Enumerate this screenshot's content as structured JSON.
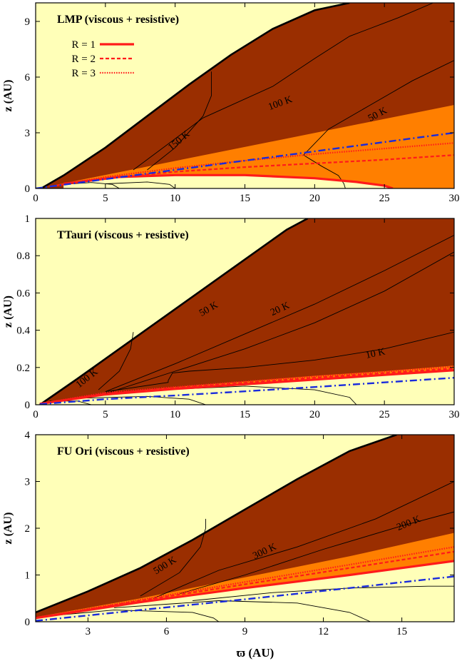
{
  "colors": {
    "dark_zone": "#9a2e00",
    "active_zone": "#ff7f00",
    "dead_zone": "#ffffb8",
    "curve_red": "#ff1a1a",
    "curve_blue": "#1a2bdc",
    "contour": "#000000"
  },
  "figure": {
    "shared_xlabel": "ϖ (AU)"
  },
  "chart_data": [
    {
      "type": "area",
      "id": "p1",
      "title": "LMP (viscous + resistive)",
      "xlabel": "",
      "ylabel": "z (AU)",
      "xlim": [
        0,
        30
      ],
      "ylim": [
        0,
        10
      ],
      "xticks": [
        0,
        5,
        10,
        15,
        20,
        25,
        30
      ],
      "yticks": [
        0,
        3,
        6,
        9
      ],
      "legend": {
        "placement": "top-left",
        "entries": [
          {
            "label": "R = 1",
            "style": "solid"
          },
          {
            "label": "R = 2",
            "style": "dashed"
          },
          {
            "label": "R = 3",
            "style": "dotted"
          }
        ]
      },
      "surface": {
        "x": [
          0.5,
          2,
          5,
          8,
          11,
          14,
          17,
          20,
          22.5
        ],
        "y": [
          0.05,
          0.7,
          2.2,
          3.9,
          5.6,
          7.2,
          8.6,
          9.6,
          10.0
        ]
      },
      "orange_top": {
        "x": [
          0.5,
          30
        ],
        "y": [
          0.05,
          4.5
        ]
      },
      "r1": {
        "x": [
          2,
          6,
          10,
          15,
          20,
          23,
          25,
          25.6
        ],
        "y": [
          0.25,
          0.62,
          0.72,
          0.72,
          0.55,
          0.35,
          0.15,
          0
        ]
      },
      "r2": {
        "x": [
          1,
          5,
          10,
          15,
          20,
          25,
          30
        ],
        "y": [
          0.1,
          0.55,
          0.9,
          1.15,
          1.35,
          1.55,
          1.8
        ]
      },
      "r3": {
        "x": [
          1,
          5,
          10,
          15,
          20,
          25,
          30
        ],
        "y": [
          0.1,
          0.62,
          1.1,
          1.5,
          1.85,
          2.15,
          2.45
        ]
      },
      "blue": {
        "x": [
          0,
          30
        ],
        "y": [
          0,
          3.0
        ]
      },
      "contours": [
        {
          "label": "150 K",
          "x": [
            8,
            10,
            12,
            12.6,
            12.6
          ],
          "y": [
            1.0,
            2.2,
            3.9,
            5.0,
            6.3
          ]
        },
        {
          "label": "100 K",
          "x": [
            7,
            12,
            17,
            20,
            22.5,
            26,
            28.5
          ],
          "y": [
            1.0,
            3.8,
            5.5,
            7.0,
            8.2,
            9.2,
            10.0
          ]
        },
        {
          "label": "50 K",
          "x": [
            19.2,
            21,
            24,
            27,
            30
          ],
          "y": [
            1.8,
            3.2,
            4.5,
            5.8,
            6.9
          ]
        },
        {
          "label": "",
          "x": [
            19.2,
            20.5,
            21.7,
            22.1,
            22.2
          ],
          "y": [
            1.8,
            1.2,
            0.7,
            0.25,
            0
          ]
        },
        {
          "label": "",
          "x": [
            2,
            4,
            5.5,
            6.0
          ],
          "y": [
            0.22,
            0.32,
            0.22,
            0
          ]
        },
        {
          "label": "",
          "x": [
            5,
            8,
            9.6,
            10.0
          ],
          "y": [
            0.25,
            0.35,
            0.22,
            0
          ]
        }
      ],
      "contour_labels": [
        {
          "text": "150 K",
          "x": 10.4,
          "y": 2.45,
          "angle": -40
        },
        {
          "text": "100 K",
          "x": 17.6,
          "y": 4.45,
          "angle": -20
        },
        {
          "text": "50 K",
          "x": 24.6,
          "y": 3.85,
          "angle": -28
        }
      ]
    },
    {
      "type": "area",
      "id": "p2",
      "title": "TTauri (viscous + resistive)",
      "xlabel": "",
      "ylabel": "z (AU)",
      "xlim": [
        0,
        30
      ],
      "ylim": [
        0,
        1
      ],
      "xticks": [
        0,
        5,
        10,
        15,
        20,
        25,
        30
      ],
      "yticks": [
        0,
        0.2,
        0.4,
        0.6,
        0.8,
        1
      ],
      "surface": {
        "x": [
          0.3,
          3,
          6,
          9,
          12,
          15,
          18,
          19.5
        ],
        "y": [
          0,
          0.14,
          0.3,
          0.46,
          0.62,
          0.78,
          0.94,
          1.0
        ]
      },
      "orange_top": {
        "x": [
          0.3,
          5,
          10,
          15,
          20,
          25,
          30
        ],
        "y": [
          0.01,
          0.06,
          0.095,
          0.125,
          0.155,
          0.18,
          0.21
        ]
      },
      "r1": {
        "x": [
          0.3,
          5,
          10,
          15,
          20,
          25,
          30
        ],
        "y": [
          0.005,
          0.055,
          0.085,
          0.11,
          0.135,
          0.16,
          0.185
        ]
      },
      "r2": {
        "x": [
          0.3,
          5,
          10,
          15,
          20,
          25,
          30
        ],
        "y": [
          0.005,
          0.06,
          0.09,
          0.118,
          0.145,
          0.17,
          0.195
        ]
      },
      "r3": {
        "x": [
          0.3,
          5,
          10,
          15,
          20,
          25,
          30
        ],
        "y": [
          0.005,
          0.065,
          0.095,
          0.125,
          0.152,
          0.178,
          0.205
        ]
      },
      "blue": {
        "x": [
          0.3,
          5,
          10,
          15,
          20,
          25,
          30
        ],
        "y": [
          0.003,
          0.03,
          0.05,
          0.072,
          0.095,
          0.12,
          0.145
        ]
      },
      "contours": [
        {
          "label": "100 K",
          "x": [
            4.5,
            6.0,
            6.8,
            7.0
          ],
          "y": [
            0.08,
            0.18,
            0.3,
            0.39
          ]
        },
        {
          "label": "50 K",
          "x": [
            5,
            10,
            15,
            20,
            25,
            30
          ],
          "y": [
            0.07,
            0.22,
            0.38,
            0.54,
            0.72,
            0.91
          ]
        },
        {
          "label": "20 K",
          "x": [
            5,
            10,
            15,
            20,
            25,
            30
          ],
          "y": [
            0.06,
            0.18,
            0.3,
            0.44,
            0.61,
            0.82
          ]
        },
        {
          "label": "10 K",
          "x": [
            9.5,
            9.8,
            11,
            15,
            20,
            25,
            30
          ],
          "y": [
            0.13,
            0.17,
            0.18,
            0.2,
            0.24,
            0.3,
            0.39
          ]
        },
        {
          "label": "",
          "x": [
            5,
            9.5,
            9.5
          ],
          "y": [
            0.07,
            0.12,
            0.13
          ]
        },
        {
          "label": "",
          "x": [
            1,
            3,
            4.0
          ],
          "y": [
            0.02,
            0.02,
            0
          ]
        },
        {
          "label": "",
          "x": [
            3,
            8,
            11,
            12.2
          ],
          "y": [
            0.035,
            0.045,
            0.03,
            0
          ]
        },
        {
          "label": "",
          "x": [
            9,
            15,
            20,
            22.5,
            23.0
          ],
          "y": [
            0.08,
            0.1,
            0.08,
            0.04,
            0
          ]
        }
      ],
      "contour_labels": [
        {
          "text": "100 K",
          "x": 3.8,
          "y": 0.13,
          "angle": -38
        },
        {
          "text": "50 K",
          "x": 12.5,
          "y": 0.5,
          "angle": -30
        },
        {
          "text": "20 K",
          "x": 17.6,
          "y": 0.5,
          "angle": -25
        },
        {
          "text": "10 K",
          "x": 24.4,
          "y": 0.26,
          "angle": -12
        }
      ]
    },
    {
      "type": "area",
      "id": "p3",
      "title": "FU Ori (viscous + resistive)",
      "xlabel": "ϖ (AU)",
      "ylabel": "z (AU)",
      "xlim": [
        1,
        17
      ],
      "ylim": [
        0,
        4
      ],
      "xticks": [
        3,
        6,
        9,
        12,
        15
      ],
      "yticks": [
        0,
        1,
        2,
        3,
        4
      ],
      "surface": {
        "x": [
          1,
          3,
          5,
          7,
          9,
          11,
          13,
          14.8
        ],
        "y": [
          0.2,
          0.65,
          1.15,
          1.75,
          2.4,
          3.05,
          3.65,
          4.0
        ]
      },
      "orange_top": {
        "x": [
          1,
          5,
          9,
          13,
          17
        ],
        "y": [
          0.1,
          0.5,
          0.95,
          1.4,
          1.9
        ]
      },
      "r1": {
        "x": [
          1,
          5,
          9,
          13,
          17
        ],
        "y": [
          0.08,
          0.42,
          0.72,
          1.0,
          1.3
        ]
      },
      "r2": {
        "x": [
          1,
          5,
          9,
          13,
          17
        ],
        "y": [
          0.08,
          0.45,
          0.8,
          1.15,
          1.5
        ]
      },
      "r3": {
        "x": [
          1,
          5,
          9,
          13,
          17
        ],
        "y": [
          0.08,
          0.47,
          0.85,
          1.22,
          1.6
        ]
      },
      "blue": {
        "x": [
          1,
          5,
          9,
          13,
          17
        ],
        "y": [
          0.02,
          0.25,
          0.48,
          0.72,
          0.97
        ]
      },
      "contours": [
        {
          "label": "500 K",
          "x": [
            5,
            6.5,
            7.3,
            7.5,
            7.5
          ],
          "y": [
            0.55,
            1.05,
            1.6,
            2.0,
            2.2
          ]
        },
        {
          "label": "300 K",
          "x": [
            5.5,
            8,
            11,
            14,
            17
          ],
          "y": [
            0.5,
            1.1,
            1.6,
            2.2,
            3.0
          ]
        },
        {
          "label": "200 K",
          "x": [
            6.5,
            9,
            12,
            15,
            17
          ],
          "y": [
            0.6,
            1.0,
            1.55,
            2.05,
            2.35
          ]
        },
        {
          "label": "",
          "x": [
            1,
            4,
            7,
            7.8,
            8.0
          ],
          "y": [
            0.1,
            0.25,
            0.2,
            0.08,
            0
          ]
        },
        {
          "label": "",
          "x": [
            4,
            8,
            11,
            13,
            13.8
          ],
          "y": [
            0.3,
            0.45,
            0.4,
            0.2,
            0
          ]
        },
        {
          "label": "",
          "x": [
            7,
            10,
            13,
            16,
            17
          ],
          "y": [
            0.45,
            0.62,
            0.72,
            0.76,
            0.76
          ]
        }
      ],
      "contour_labels": [
        {
          "text": "500 K",
          "x": 6.0,
          "y": 1.15,
          "angle": -32
        },
        {
          "text": "300 K",
          "x": 9.8,
          "y": 1.45,
          "angle": -25
        },
        {
          "text": "200 K",
          "x": 15.3,
          "y": 2.05,
          "angle": -22
        }
      ]
    }
  ]
}
